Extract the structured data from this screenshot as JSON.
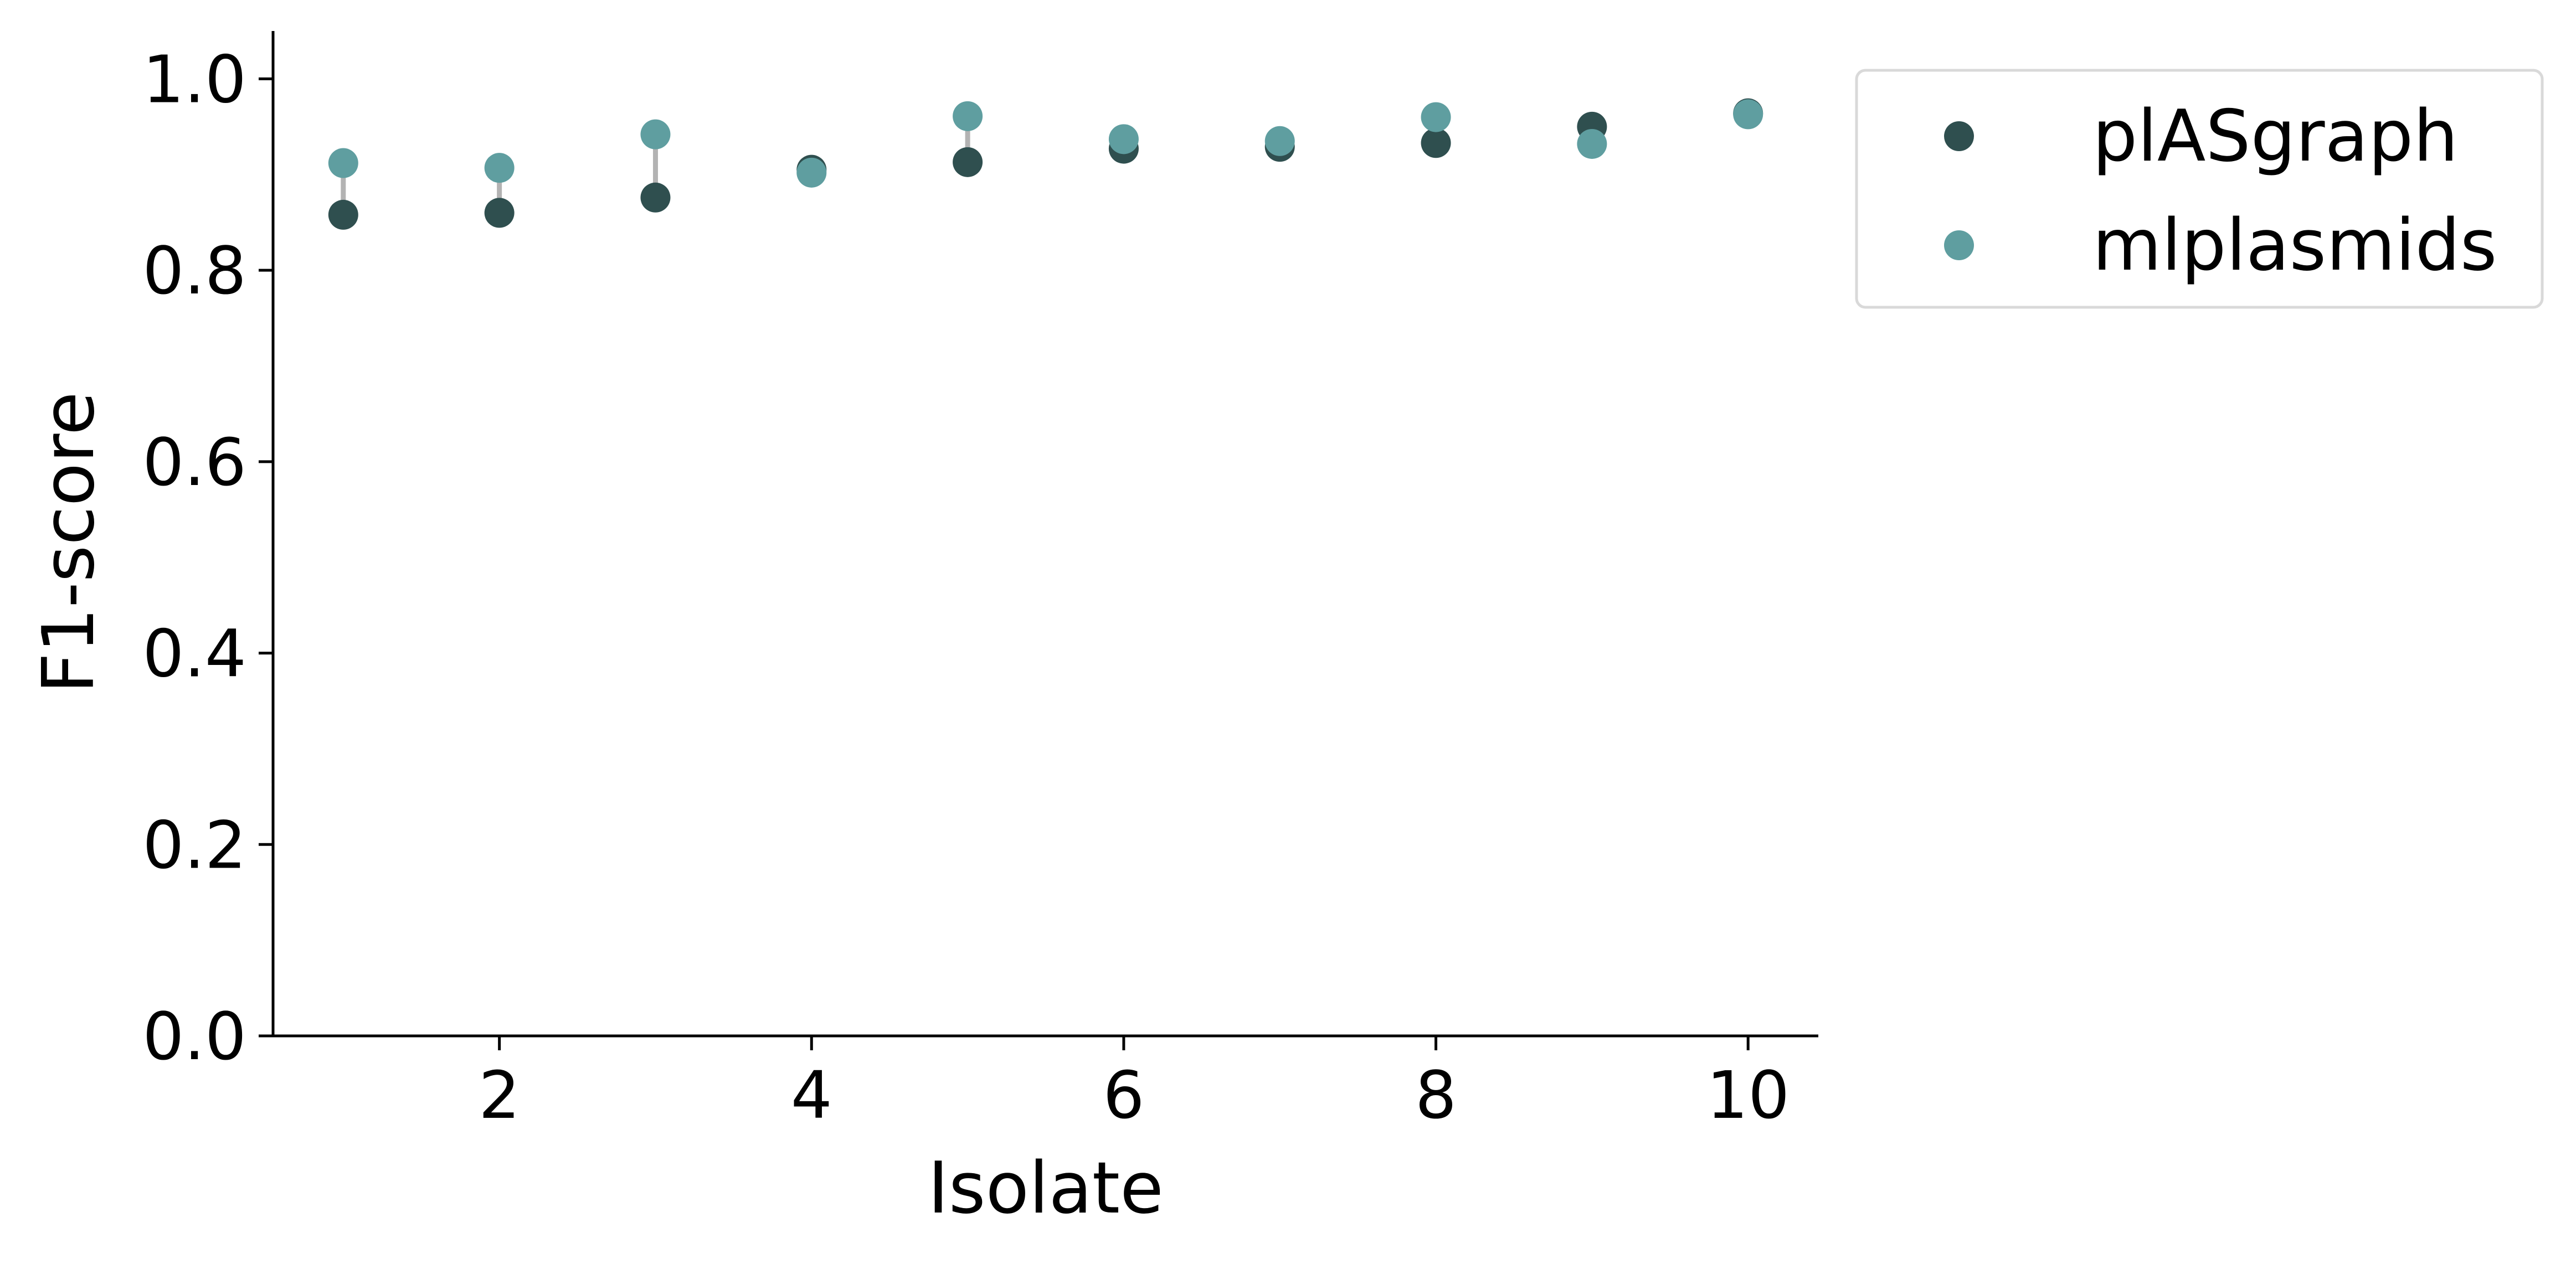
{
  "chart_data": {
    "type": "scatter",
    "title": "",
    "xlabel": "Isolate",
    "ylabel": "F1-score",
    "xlim": [
      0.55,
      10.45
    ],
    "ylim": [
      0.0,
      1.05
    ],
    "x_ticks": [
      2,
      4,
      6,
      8,
      10
    ],
    "x_tick_labels": [
      "2",
      "4",
      "6",
      "8",
      "10"
    ],
    "y_ticks": [
      0.0,
      0.2,
      0.4,
      0.6,
      0.8,
      1.0
    ],
    "y_tick_labels": [
      "0.0",
      "0.2",
      "0.4",
      "0.6",
      "0.8",
      "1.0"
    ],
    "grid": false,
    "legend_position": "outside-top-right",
    "x": [
      1,
      2,
      3,
      4,
      5,
      6,
      7,
      8,
      9,
      10
    ],
    "series": [
      {
        "name": "plASgraph",
        "color": "#2f4f4f",
        "values": [
          0.858,
          0.86,
          0.876,
          0.905,
          0.913,
          0.927,
          0.929,
          0.933,
          0.95,
          0.964
        ]
      },
      {
        "name": "mlplasmids",
        "color": "#5f9ea0",
        "values": [
          0.912,
          0.907,
          0.942,
          0.902,
          0.961,
          0.937,
          0.935,
          0.96,
          0.932,
          0.963
        ]
      }
    ],
    "connector_color": "#b3b3b3"
  }
}
